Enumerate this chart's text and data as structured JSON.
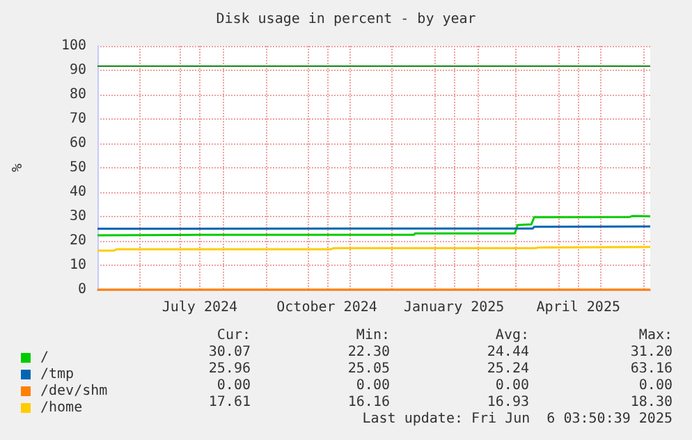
{
  "chart_data": {
    "type": "line",
    "title": "Disk usage in percent - by year",
    "ylabel": "%",
    "xlim": [
      "2024-05-02",
      "2025-06-06"
    ],
    "xticks": [
      {
        "value": "2024-06-01",
        "label": null
      },
      {
        "value": "2024-07-01",
        "label": null
      },
      {
        "value": "2024-07-15",
        "label": "July 2024"
      },
      {
        "value": "2024-08-01",
        "label": null
      },
      {
        "value": "2024-09-01",
        "label": null
      },
      {
        "value": "2024-10-01",
        "label": null
      },
      {
        "value": "2024-10-15",
        "label": "October 2024"
      },
      {
        "value": "2024-11-01",
        "label": null
      },
      {
        "value": "2024-12-01",
        "label": null
      },
      {
        "value": "2025-01-01",
        "label": null
      },
      {
        "value": "2025-01-15",
        "label": "January 2025"
      },
      {
        "value": "2025-02-01",
        "label": null
      },
      {
        "value": "2025-03-01",
        "label": null
      },
      {
        "value": "2025-04-01",
        "label": null
      },
      {
        "value": "2025-04-15",
        "label": "April 2025"
      },
      {
        "value": "2025-05-01",
        "label": null
      },
      {
        "value": "2025-06-01",
        "label": null
      }
    ],
    "ylim": [
      0,
      100
    ],
    "yticks": [
      0,
      10,
      20,
      30,
      40,
      50,
      60,
      70,
      80,
      90,
      100
    ],
    "grid": true,
    "legend": "bottom left",
    "marker": "none",
    "line_style": "solid",
    "ref_lines": [
      {
        "axis": "y",
        "value": 92,
        "color": "#118811"
      }
    ],
    "series": [
      {
        "name": "/",
        "color": "#00cc00",
        "x": [
          "2024-05-02",
          "2024-07-14",
          "2024-12-17",
          "2024-12-18",
          "2025-02-28",
          "2025-03-02",
          "2025-03-12",
          "2025-03-14",
          "2025-05-22",
          "2025-05-24",
          "2025-06-06"
        ],
        "values": [
          22.3,
          22.5,
          22.5,
          23.1,
          23.1,
          26.5,
          26.8,
          29.7,
          29.8,
          30.2,
          30.1
        ]
      },
      {
        "name": "/tmp",
        "color": "#0066b3",
        "x": [
          "2024-05-02",
          "2025-03-13",
          "2025-03-14",
          "2025-06-06"
        ],
        "values": [
          25.0,
          25.1,
          25.8,
          25.9
        ]
      },
      {
        "name": "/dev/shm",
        "color": "#ff8000",
        "x": [
          "2024-05-02",
          "2025-06-06"
        ],
        "values": [
          0,
          0
        ]
      },
      {
        "name": "/home",
        "color": "#ffcc00",
        "x": [
          "2024-05-02",
          "2024-05-14",
          "2024-05-16",
          "2024-10-18",
          "2024-10-20",
          "2025-03-15",
          "2025-03-17",
          "2025-06-06"
        ],
        "values": [
          16.0,
          16.0,
          16.6,
          16.6,
          17.0,
          17.0,
          17.3,
          17.5
        ]
      }
    ],
    "annotations": [
      "Cur:",
      "Min:",
      "Avg:",
      "Max:",
      "30.07",
      "22.30",
      "24.44",
      "31.20",
      "25.96",
      "25.05",
      "25.24",
      "63.16",
      "0.00",
      "0.00",
      "0.00",
      "0.00",
      "17.61",
      "16.16",
      "16.93",
      "18.30",
      "Last update: Fri Jun  6 03:50:39 2025"
    ]
  }
}
